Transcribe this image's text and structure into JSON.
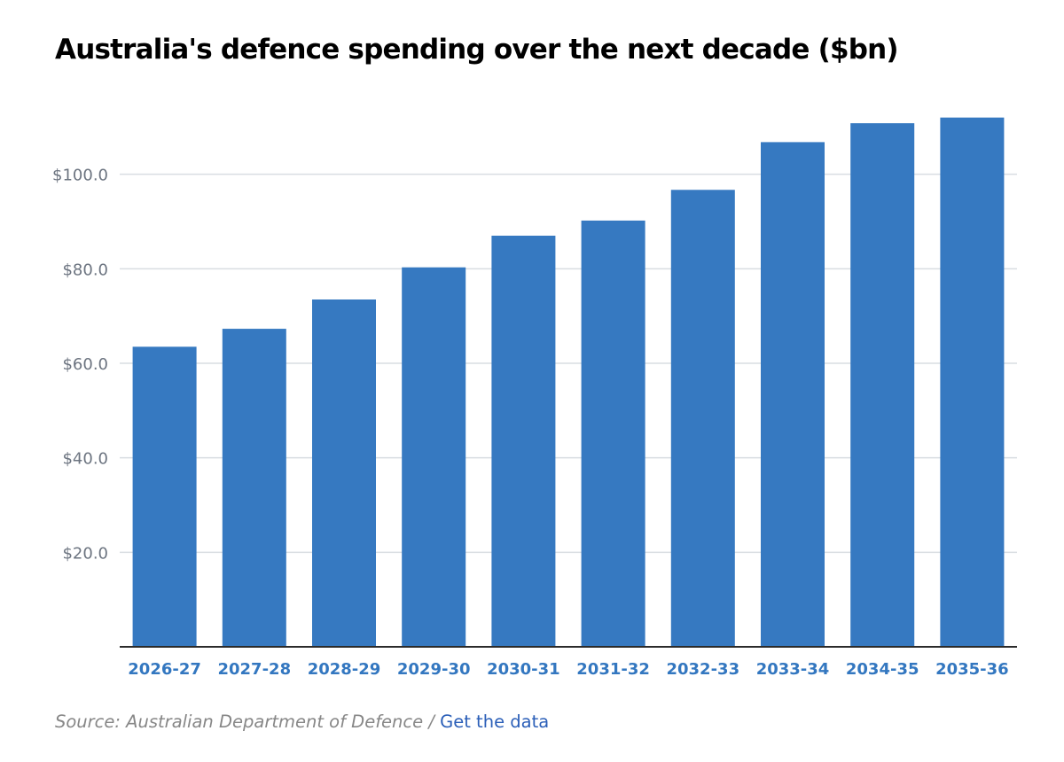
{
  "title": "Australia's defence spending over the next decade ($bn)",
  "colors": {
    "bar": "#3679c1",
    "grid": "#d9dde2",
    "axis": "#2b2b2b",
    "y_tick": "#6c7480",
    "x_tick": "#3377c0",
    "link": "#2b5fb8"
  },
  "chart_data": {
    "type": "bar",
    "title": "Australia's defence spending over the next decade ($bn)",
    "xlabel": "",
    "ylabel": "",
    "ylim": [
      0,
      120
    ],
    "yticks": [
      20,
      40,
      60,
      80,
      100
    ],
    "ytick_labels": [
      "$20.0",
      "$40.0",
      "$60.0",
      "$80.0",
      "$100.0"
    ],
    "grid": true,
    "categories": [
      "2026-27",
      "2027-28",
      "2028-29",
      "2029-30",
      "2030-31",
      "2031-32",
      "2032-33",
      "2033-34",
      "2034-35",
      "2035-36"
    ],
    "values": [
      63.5,
      67.3,
      73.5,
      80.3,
      87.0,
      90.2,
      96.7,
      106.8,
      110.8,
      112.0
    ]
  },
  "footer": {
    "source_text": "Source: Australian Department of Defence /",
    "link_text": "Get the data"
  }
}
